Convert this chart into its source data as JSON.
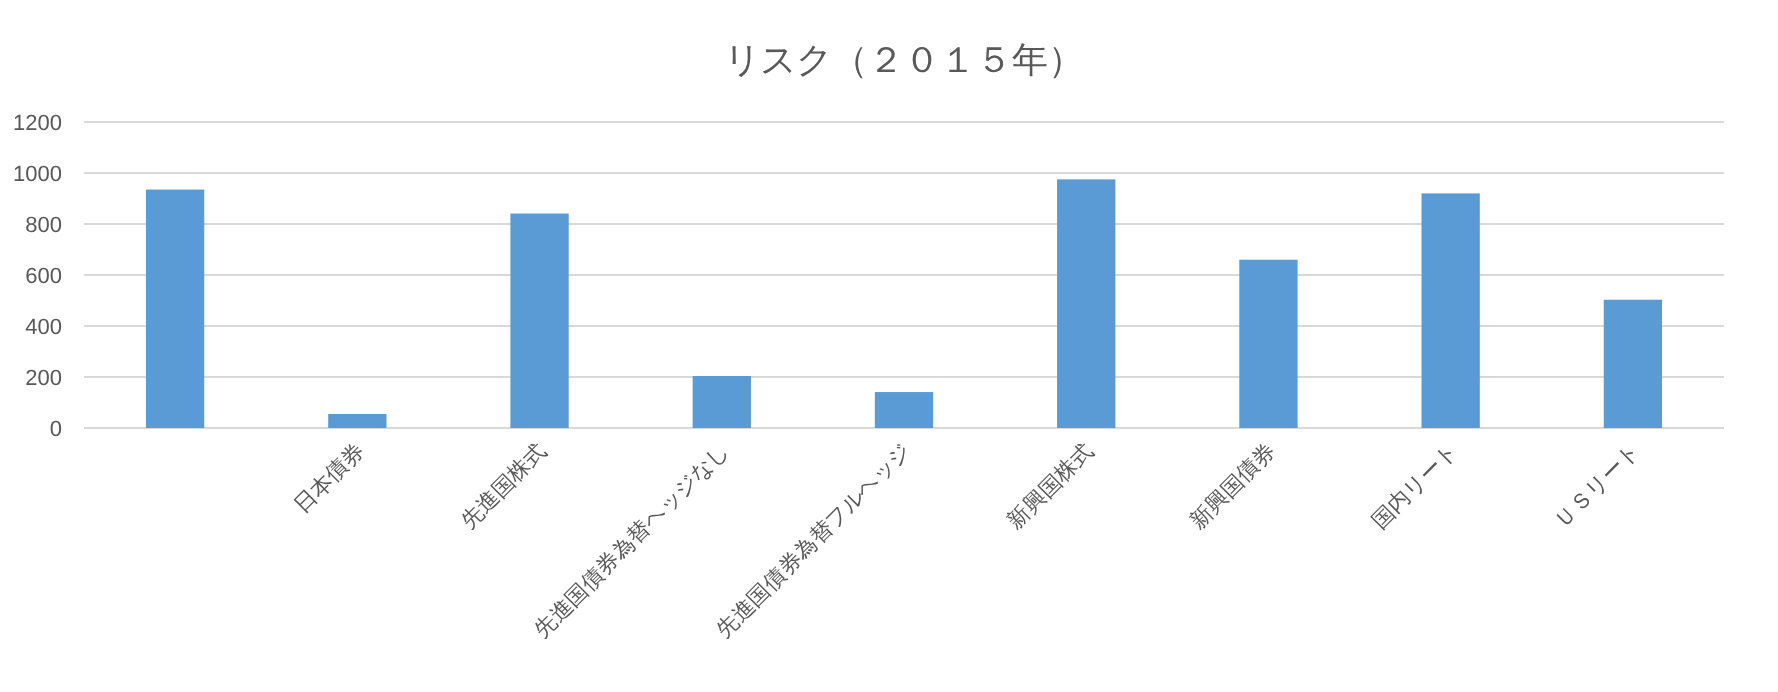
{
  "chart_data": {
    "type": "bar",
    "title": "リスク（２０１５年）",
    "categories": [
      null,
      "日本債券",
      "先進国株式",
      "先進国債券為替ヘッジなし",
      "先進国債券為替フルヘッジ",
      "新興国株式",
      "新興国債券",
      "国内リート",
      "ＵＳリート"
    ],
    "values": [
      935,
      55,
      841,
      204,
      141,
      975,
      660,
      920,
      503
    ],
    "color": "#5b9bd5",
    "ylim": [
      0,
      1200
    ],
    "yticks": [
      0,
      200,
      400,
      600,
      800,
      1000,
      1200
    ],
    "grid": "y"
  }
}
